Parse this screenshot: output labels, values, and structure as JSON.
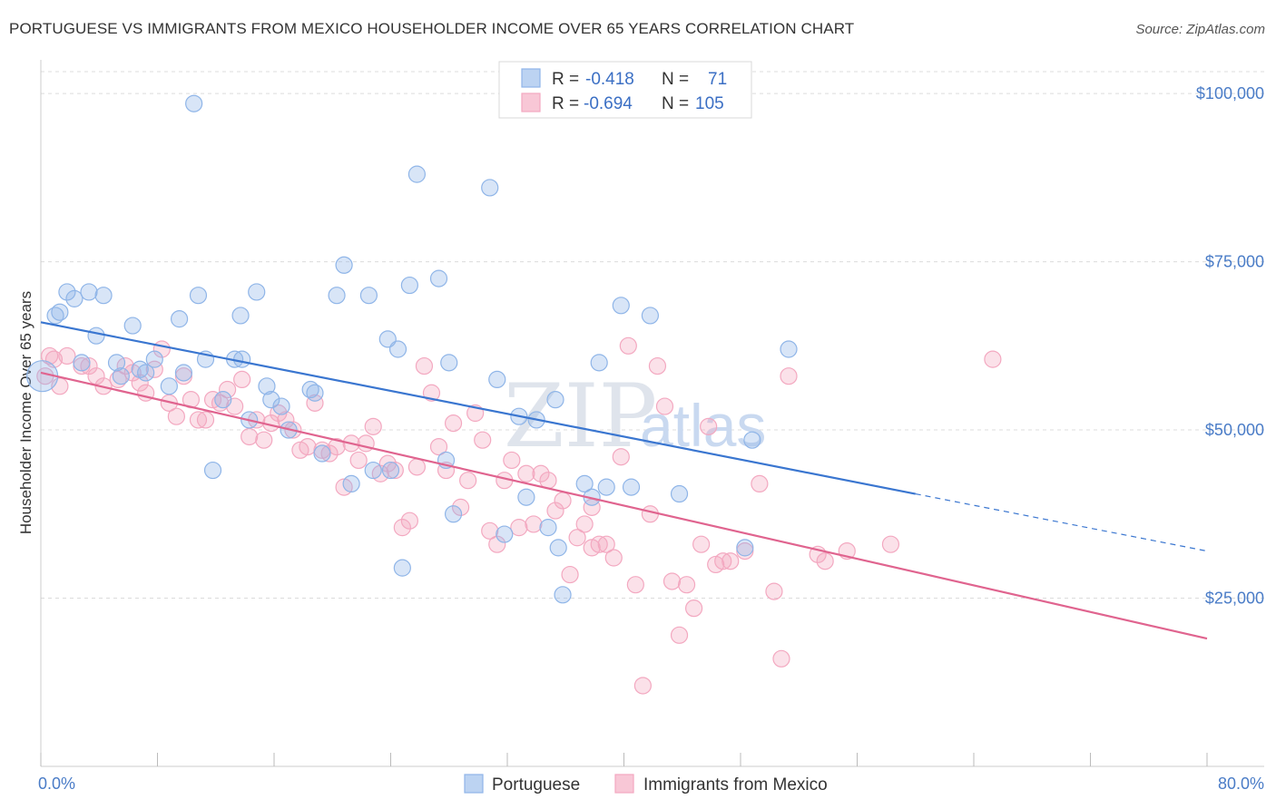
{
  "title": "PORTUGUESE VS IMMIGRANTS FROM MEXICO HOUSEHOLDER INCOME OVER 65 YEARS CORRELATION CHART",
  "source": "Source: ZipAtlas.com",
  "watermark": {
    "zip": "ZIP",
    "atlas": "atlas"
  },
  "legend": {
    "rows": [
      {
        "r_label": "R =",
        "r_value": "-0.418",
        "n_label": "N =",
        "n_value": "71"
      },
      {
        "r_label": "R =",
        "r_value": "-0.694",
        "n_label": "N =",
        "n_value": "105"
      }
    ]
  },
  "bottom_legend": {
    "series1": "Portuguese",
    "series2": "Immigrants from Mexico"
  },
  "colors": {
    "blue": "#8fb5e8",
    "blue_line": "#3a76d0",
    "pink": "#f3a8c0",
    "pink_line": "#e0648f",
    "axis_text": "#4a7cc7"
  },
  "chart_data": {
    "type": "scatter",
    "title": "PORTUGUESE VS IMMIGRANTS FROM MEXICO HOUSEHOLDER INCOME OVER 65 YEARS CORRELATION CHART",
    "xlabel": "",
    "ylabel": "Householder Income Over 65 years",
    "xlim": [
      0,
      80
    ],
    "ylim": [
      0,
      105000
    ],
    "x_tick_labels": [
      "0.0%",
      "80.0%"
    ],
    "y_ticks": [
      25000,
      50000,
      75000,
      100000
    ],
    "y_tick_labels": [
      "$25,000",
      "$50,000",
      "$75,000",
      "$100,000"
    ],
    "grid": true,
    "series": [
      {
        "name": "Portuguese",
        "r": -0.418,
        "n": 71,
        "trend": {
          "x_start": 0,
          "y_start": 66000,
          "x_solid_end": 60,
          "y_solid_end": 40500,
          "x_end": 80,
          "y_end": 32000
        },
        "points": [
          [
            0.1,
            58000
          ],
          [
            1.0,
            67000
          ],
          [
            1.3,
            67500
          ],
          [
            1.8,
            70500
          ],
          [
            2.3,
            69500
          ],
          [
            3.3,
            70500
          ],
          [
            4.3,
            70000
          ],
          [
            3.8,
            64000
          ],
          [
            2.8,
            60000
          ],
          [
            6.3,
            65500
          ],
          [
            5.2,
            60000
          ],
          [
            5.5,
            58000
          ],
          [
            7.2,
            58500
          ],
          [
            6.8,
            59000
          ],
          [
            7.8,
            60500
          ],
          [
            8.8,
            56500
          ],
          [
            9.5,
            66500
          ],
          [
            9.8,
            58500
          ],
          [
            10.5,
            98500
          ],
          [
            10.8,
            70000
          ],
          [
            11.3,
            60500
          ],
          [
            11.8,
            44000
          ],
          [
            12.5,
            54500
          ],
          [
            13.3,
            60500
          ],
          [
            13.7,
            67000
          ],
          [
            13.8,
            60500
          ],
          [
            14.3,
            51500
          ],
          [
            14.8,
            70500
          ],
          [
            15.5,
            56500
          ],
          [
            15.8,
            54500
          ],
          [
            16.5,
            53500
          ],
          [
            17.0,
            50000
          ],
          [
            18.5,
            56000
          ],
          [
            18.8,
            55500
          ],
          [
            19.3,
            46500
          ],
          [
            20.3,
            70000
          ],
          [
            20.8,
            74500
          ],
          [
            21.3,
            42000
          ],
          [
            22.5,
            70000
          ],
          [
            22.8,
            44000
          ],
          [
            23.8,
            63500
          ],
          [
            24.5,
            62000
          ],
          [
            24.8,
            29500
          ],
          [
            25.3,
            71500
          ],
          [
            25.8,
            88000
          ],
          [
            27.3,
            72500
          ],
          [
            27.8,
            45500
          ],
          [
            28.0,
            60000
          ],
          [
            28.3,
            37500
          ],
          [
            30.8,
            86000
          ],
          [
            31.3,
            57500
          ],
          [
            31.8,
            34500
          ],
          [
            32.8,
            52000
          ],
          [
            33.3,
            40000
          ],
          [
            34.0,
            51500
          ],
          [
            34.8,
            35500
          ],
          [
            35.3,
            54500
          ],
          [
            35.5,
            32500
          ],
          [
            35.8,
            25500
          ],
          [
            37.3,
            42000
          ],
          [
            37.8,
            40000
          ],
          [
            38.3,
            60000
          ],
          [
            38.8,
            41500
          ],
          [
            39.8,
            68500
          ],
          [
            41.8,
            67000
          ],
          [
            43.8,
            40500
          ],
          [
            48.3,
            32500
          ],
          [
            48.8,
            48500
          ],
          [
            51.3,
            62000
          ],
          [
            40.5,
            41500
          ],
          [
            24.0,
            44000
          ]
        ]
      },
      {
        "name": "Immigrants from Mexico",
        "r": -0.694,
        "n": 105,
        "trend": {
          "x_start": 0,
          "y_start": 58500,
          "x_end": 80,
          "y_end": 19000
        },
        "points": [
          [
            0.3,
            58000
          ],
          [
            0.6,
            61000
          ],
          [
            0.9,
            60500
          ],
          [
            1.3,
            56500
          ],
          [
            1.8,
            61000
          ],
          [
            2.8,
            59500
          ],
          [
            3.3,
            59500
          ],
          [
            3.8,
            58000
          ],
          [
            4.3,
            56500
          ],
          [
            5.3,
            57500
          ],
          [
            5.8,
            59500
          ],
          [
            6.3,
            58500
          ],
          [
            6.8,
            57000
          ],
          [
            7.2,
            55500
          ],
          [
            7.8,
            59000
          ],
          [
            8.3,
            62000
          ],
          [
            8.8,
            54000
          ],
          [
            9.3,
            52000
          ],
          [
            9.8,
            58000
          ],
          [
            10.3,
            54500
          ],
          [
            10.8,
            51500
          ],
          [
            11.3,
            51500
          ],
          [
            11.8,
            54500
          ],
          [
            12.3,
            54000
          ],
          [
            12.8,
            56000
          ],
          [
            13.3,
            53500
          ],
          [
            13.8,
            57500
          ],
          [
            14.3,
            49000
          ],
          [
            14.8,
            51500
          ],
          [
            15.3,
            48500
          ],
          [
            15.8,
            51000
          ],
          [
            16.3,
            52500
          ],
          [
            16.8,
            51500
          ],
          [
            17.3,
            50000
          ],
          [
            17.8,
            47000
          ],
          [
            18.3,
            47500
          ],
          [
            18.8,
            54000
          ],
          [
            19.3,
            47000
          ],
          [
            19.8,
            46500
          ],
          [
            20.3,
            47500
          ],
          [
            20.8,
            41500
          ],
          [
            21.3,
            48000
          ],
          [
            21.8,
            45500
          ],
          [
            22.3,
            48000
          ],
          [
            22.8,
            50500
          ],
          [
            23.3,
            43500
          ],
          [
            23.8,
            45000
          ],
          [
            24.3,
            44000
          ],
          [
            24.8,
            35500
          ],
          [
            25.3,
            36500
          ],
          [
            25.8,
            44500
          ],
          [
            26.3,
            59500
          ],
          [
            26.8,
            55500
          ],
          [
            27.3,
            47500
          ],
          [
            27.8,
            44000
          ],
          [
            28.3,
            51000
          ],
          [
            28.8,
            38500
          ],
          [
            29.3,
            42500
          ],
          [
            29.8,
            52500
          ],
          [
            30.3,
            48500
          ],
          [
            30.8,
            35000
          ],
          [
            31.3,
            33000
          ],
          [
            31.8,
            42500
          ],
          [
            32.3,
            45500
          ],
          [
            32.8,
            35500
          ],
          [
            33.3,
            43500
          ],
          [
            33.8,
            36000
          ],
          [
            34.3,
            43500
          ],
          [
            34.8,
            42500
          ],
          [
            35.3,
            38000
          ],
          [
            35.8,
            39500
          ],
          [
            36.3,
            28500
          ],
          [
            36.8,
            34000
          ],
          [
            37.3,
            36000
          ],
          [
            37.8,
            32500
          ],
          [
            38.3,
            33000
          ],
          [
            38.8,
            33000
          ],
          [
            39.3,
            31000
          ],
          [
            39.8,
            46000
          ],
          [
            40.3,
            62500
          ],
          [
            40.8,
            27000
          ],
          [
            41.3,
            12000
          ],
          [
            41.8,
            37500
          ],
          [
            42.3,
            59500
          ],
          [
            42.8,
            53500
          ],
          [
            43.3,
            27500
          ],
          [
            43.8,
            19500
          ],
          [
            44.3,
            27000
          ],
          [
            44.8,
            23500
          ],
          [
            45.3,
            33000
          ],
          [
            45.8,
            50500
          ],
          [
            46.3,
            30000
          ],
          [
            46.8,
            30500
          ],
          [
            47.3,
            30500
          ],
          [
            48.3,
            32000
          ],
          [
            49.3,
            42000
          ],
          [
            50.3,
            26000
          ],
          [
            50.8,
            16000
          ],
          [
            51.3,
            58000
          ],
          [
            53.3,
            31500
          ],
          [
            53.8,
            30500
          ],
          [
            55.3,
            32000
          ],
          [
            58.3,
            33000
          ],
          [
            65.3,
            60500
          ],
          [
            37.8,
            38500
          ]
        ]
      }
    ]
  }
}
